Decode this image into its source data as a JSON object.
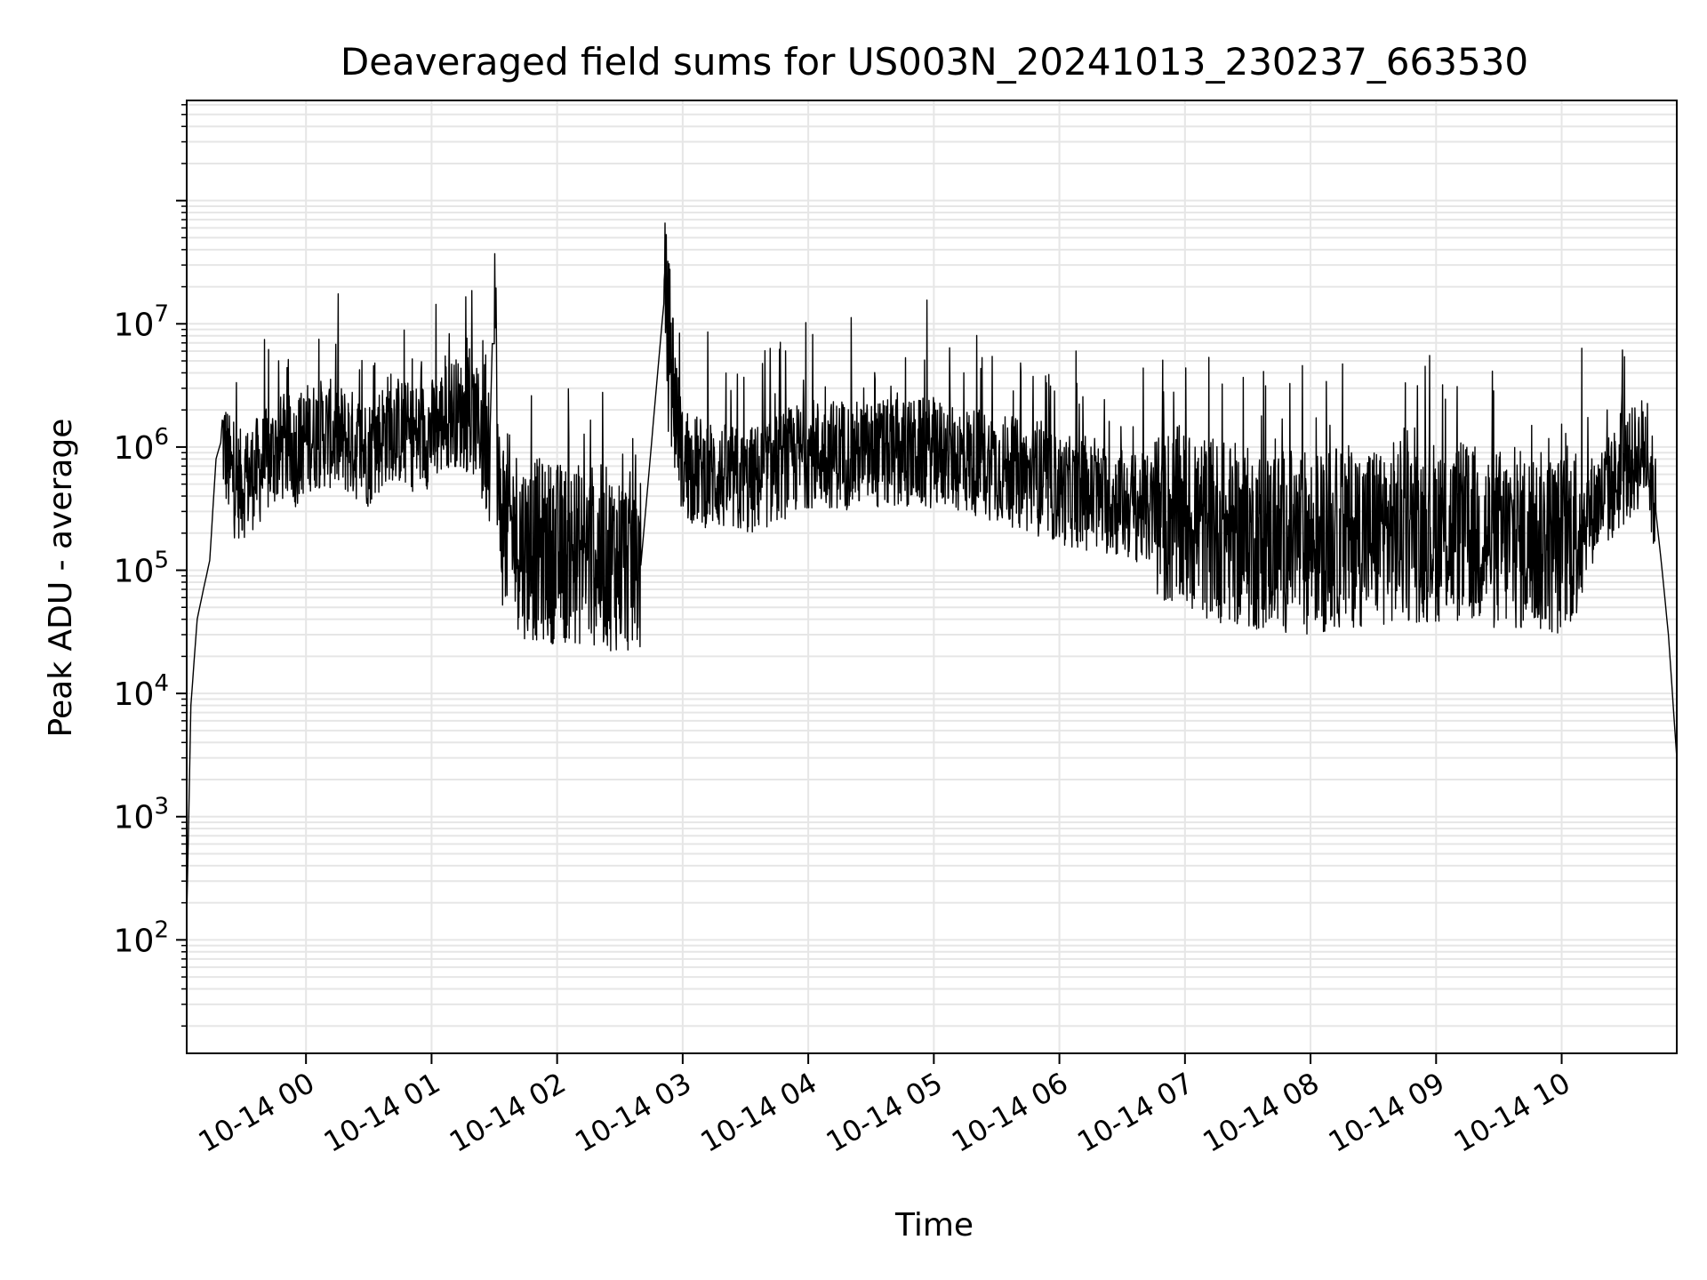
{
  "chart_data": {
    "type": "line",
    "title": "Deaveraged field sums for US003N_20241013_230237_663530",
    "xlabel": "Time",
    "ylabel": "Peak ADU - average",
    "yscale": "log",
    "ylim": [
      12,
      650000000
    ],
    "xlim": [
      "2024-10-13T23:03:00",
      "2024-10-14T10:55:00"
    ],
    "x_ticks": [
      {
        "t": "2024-10-14T00:00",
        "label": "10-14 00"
      },
      {
        "t": "2024-10-14T01:00",
        "label": "10-14 01"
      },
      {
        "t": "2024-10-14T02:00",
        "label": "10-14 02"
      },
      {
        "t": "2024-10-14T03:00",
        "label": "10-14 03"
      },
      {
        "t": "2024-10-14T04:00",
        "label": "10-14 04"
      },
      {
        "t": "2024-10-14T05:00",
        "label": "10-14 05"
      },
      {
        "t": "2024-10-14T06:00",
        "label": "10-14 06"
      },
      {
        "t": "2024-10-14T07:00",
        "label": "10-14 07"
      },
      {
        "t": "2024-10-14T08:00",
        "label": "10-14 08"
      },
      {
        "t": "2024-10-14T09:00",
        "label": "10-14 09"
      },
      {
        "t": "2024-10-14T10:00",
        "label": "10-14 10"
      }
    ],
    "y_ticks": [
      {
        "value": 100,
        "base": "10",
        "exp": "2"
      },
      {
        "value": 1000,
        "base": "10",
        "exp": "3"
      },
      {
        "value": 10000,
        "base": "10",
        "exp": "4"
      },
      {
        "value": 100000,
        "base": "10",
        "exp": "5"
      },
      {
        "value": 1000000,
        "base": "10",
        "exp": "6"
      },
      {
        "value": 10000000,
        "base": "10",
        "exp": "7"
      }
    ],
    "grid": true,
    "line_color": "#000000",
    "grid_color": "#e6e6e6",
    "series": [
      {
        "x": [
          "2024-10-13T23:03",
          "2024-10-13T23:05",
          "2024-10-13T23:08",
          "2024-10-13T23:11",
          "2024-10-13T23:14",
          "2024-10-13T23:17",
          "2024-10-13T23:20",
          "2024-10-13T23:23",
          "2024-10-13T23:26",
          "2024-10-13T23:30",
          "2024-10-13T23:35",
          "2024-10-13T23:40",
          "2024-10-13T23:45",
          "2024-10-13T23:50",
          "2024-10-13T23:55",
          "2024-10-14T00:00",
          "2024-10-14T00:10",
          "2024-10-14T00:20",
          "2024-10-14T00:30",
          "2024-10-14T00:40",
          "2024-10-14T00:50",
          "2024-10-14T01:00",
          "2024-10-14T01:10",
          "2024-10-14T01:20",
          "2024-10-14T01:28",
          "2024-10-14T01:30",
          "2024-10-14T01:32",
          "2024-10-14T01:45",
          "2024-10-14T02:00",
          "2024-10-14T02:20",
          "2024-10-14T02:40",
          "2024-10-14T02:51",
          "2024-10-14T03:00",
          "2024-10-14T03:30",
          "2024-10-14T04:00",
          "2024-10-14T04:30",
          "2024-10-14T05:00",
          "2024-10-14T05:30",
          "2024-10-14T06:00",
          "2024-10-14T06:30",
          "2024-10-14T07:00",
          "2024-10-14T07:30",
          "2024-10-14T08:00",
          "2024-10-14T08:30",
          "2024-10-14T09:00",
          "2024-10-14T09:30",
          "2024-10-14T10:00",
          "2024-10-14T10:20",
          "2024-10-14T10:40",
          "2024-10-14T10:45",
          "2024-10-14T10:48",
          "2024-10-14T10:51",
          "2024-10-14T10:55"
        ],
        "y": [
          150,
          8000,
          40000,
          70000,
          120000,
          800000,
          1200000,
          700000,
          500000,
          500000,
          600000,
          700000,
          900000,
          1000000,
          900000,
          1200000,
          1300000,
          1100000,
          900000,
          1500000,
          1200000,
          1300000,
          2000000,
          1600000,
          1400000,
          34000000,
          300000,
          150000,
          140000,
          130000,
          110000,
          15000000,
          700000,
          500000,
          900000,
          850000,
          900000,
          700000,
          450000,
          350000,
          250000,
          180000,
          170000,
          200000,
          210000,
          180000,
          160000,
          400000,
          1000000,
          300000,
          100000,
          30000,
          3000
        ]
      }
    ]
  }
}
